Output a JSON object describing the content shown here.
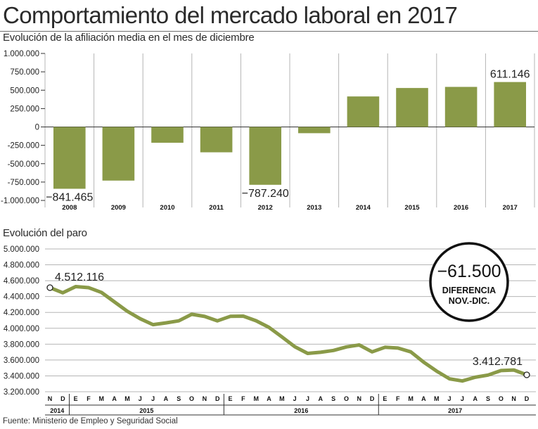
{
  "title": "Comportamiento del mercado laboral en 2017",
  "source": "Fuente: Ministerio de Empleo y Seguridad Social",
  "colors": {
    "bar": "#8a9a48",
    "line": "#8a9a48",
    "grid": "#b5b5b5",
    "axis": "#333333"
  },
  "chart_data": [
    {
      "type": "bar",
      "title": "Evolución de la afiliación media en el mes de diciembre",
      "categories": [
        "2008",
        "2009",
        "2010",
        "2011",
        "2012",
        "2013",
        "2014",
        "2015",
        "2016",
        "2017"
      ],
      "values": [
        -841465,
        -730000,
        -215000,
        -345000,
        -787240,
        -85000,
        415000,
        530000,
        545000,
        611146
      ],
      "data_labels": {
        "0": "−841.465",
        "4": "−787.240",
        "9": "611.146"
      },
      "ylim": [
        -1000000,
        1000000
      ],
      "yticks": [
        1000000,
        750000,
        500000,
        250000,
        0,
        -250000,
        -500000,
        -750000,
        -1000000
      ],
      "ytick_labels": [
        "1.000.000",
        "750.000",
        "500.000",
        "250.000",
        "0",
        "-250.000",
        "-500.000",
        "-750.000",
        "-1.000.000"
      ],
      "grid": "vertical separators"
    },
    {
      "type": "line",
      "title": "Evolución del paro",
      "months": [
        "N",
        "D",
        "E",
        "F",
        "M",
        "A",
        "M",
        "J",
        "J",
        "A",
        "S",
        "O",
        "N",
        "D",
        "E",
        "F",
        "M",
        "A",
        "M",
        "J",
        "J",
        "A",
        "S",
        "O",
        "N",
        "D",
        "E",
        "F",
        "M",
        "A",
        "M",
        "J",
        "J",
        "A",
        "S",
        "O",
        "N",
        "D"
      ],
      "years": [
        {
          "label": "2014",
          "first": 0,
          "last": 1
        },
        {
          "label": "2015",
          "first": 2,
          "last": 13
        },
        {
          "label": "2016",
          "first": 14,
          "last": 25
        },
        {
          "label": "2017",
          "first": 26,
          "last": 37
        }
      ],
      "values": [
        4512116,
        4447650,
        4525691,
        4512153,
        4451939,
        4333016,
        4215031,
        4120304,
        4046276,
        4067955,
        4094042,
        4176369,
        4149298,
        4093508,
        4150903,
        4152986,
        4094770,
        4011171,
        3891403,
        3767054,
        3683061,
        3697496,
        3720297,
        3764982,
        3789823,
        3702974,
        3760231,
        3750876,
        3702317,
        3573036,
        3461128,
        3362811,
        3335924,
        3382324,
        3410182,
        3467026,
        3474281,
        3412781
      ],
      "ylim": [
        3200000,
        5000000
      ],
      "yticks": [
        5000000,
        4800000,
        4600000,
        4400000,
        4200000,
        4000000,
        3800000,
        3600000,
        3400000,
        3200000
      ],
      "ytick_labels": [
        "5.000.000",
        "4.800.000",
        "4.600.000",
        "4.400.000",
        "4.200.000",
        "4.000.000",
        "3.800.000",
        "3.600.000",
        "3.400.000",
        "3.200.000"
      ],
      "data_labels": {
        "0": "4.512.116",
        "37": "3.412.781"
      },
      "grid": "horizontal",
      "annotation": {
        "value": "−61.500",
        "text_line1": "DIFERENCIA",
        "text_line2": "NOV.-DIC."
      }
    }
  ]
}
